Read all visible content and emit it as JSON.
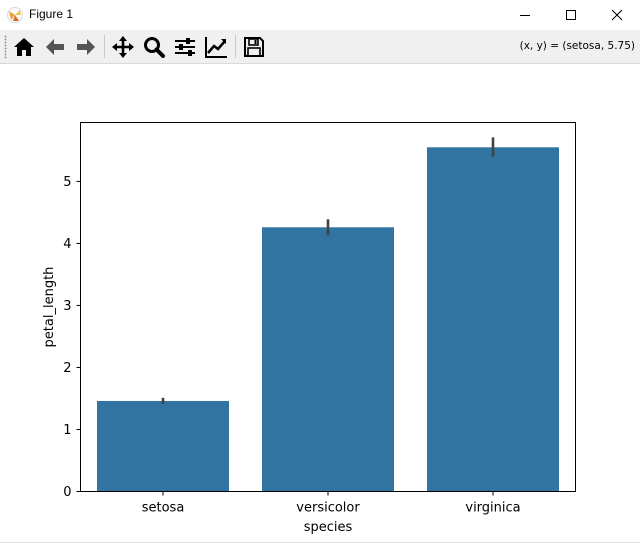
{
  "window": {
    "title": "Figure 1"
  },
  "toolbar": {
    "coords_text": "(x, y) = (setosa, 5.75)",
    "buttons": [
      "home-icon",
      "back-icon",
      "forward-icon",
      "pan-icon",
      "zoom-icon",
      "configure-subplots-icon",
      "edit-axis-icon",
      "save-icon"
    ]
  },
  "colors": {
    "bar": "#3274a1",
    "errorbar": "#424242",
    "toolbar_bg": "#f0f0f0"
  },
  "chart_data": {
    "type": "bar",
    "categories": [
      "setosa",
      "versicolor",
      "virginica"
    ],
    "values": [
      1.46,
      4.26,
      5.55
    ],
    "errors": [
      [
        1.41,
        1.51
      ],
      [
        4.13,
        4.39
      ],
      [
        5.4,
        5.71
      ]
    ],
    "xlabel": "species",
    "ylabel": "petal_length",
    "yticks": [
      "0",
      "1",
      "2",
      "3",
      "4",
      "5"
    ],
    "ylim": [
      0,
      5.95
    ],
    "grid": false
  }
}
